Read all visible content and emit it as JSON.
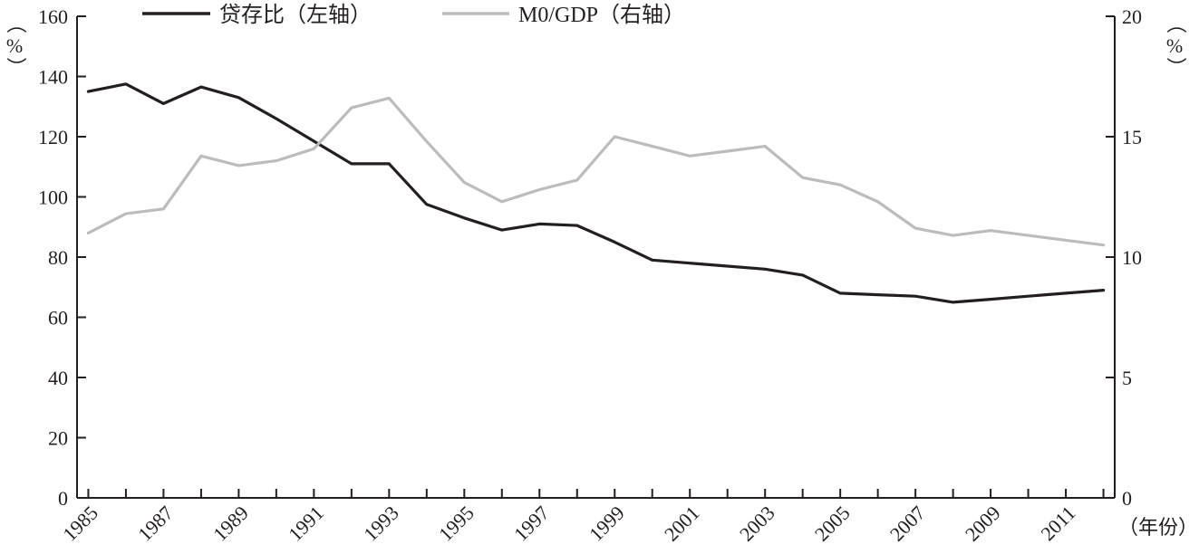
{
  "chart_data": {
    "type": "line",
    "title": "",
    "xlabel": "（年份）",
    "ylabel_left": "（%）",
    "ylabel_right": "（%）",
    "x": [
      1985,
      1986,
      1987,
      1988,
      1989,
      1990,
      1991,
      1992,
      1993,
      1994,
      1995,
      1996,
      1997,
      1998,
      1999,
      2000,
      2001,
      2002,
      2003,
      2004,
      2005,
      2006,
      2007,
      2008,
      2009,
      2010,
      2011,
      2012
    ],
    "x_tick_labels": [
      "1985",
      "1987",
      "1989",
      "1991",
      "1993",
      "1995",
      "1997",
      "1999",
      "2001",
      "2003",
      "2005",
      "2007",
      "2009",
      "2011"
    ],
    "xlim": [
      1984.7,
      2012.3
    ],
    "ylim_left": [
      0,
      160
    ],
    "ylim_right": [
      0,
      20
    ],
    "y_ticks_left": [
      "0",
      "20",
      "40",
      "60",
      "80",
      "100",
      "120",
      "140",
      "160"
    ],
    "y_ticks_right": [
      "0",
      "5",
      "10",
      "15",
      "20"
    ],
    "grid": false,
    "legend_position": "top-center",
    "series": [
      {
        "name": "贷存比（左轴）",
        "axis": "left",
        "color": "#231f20",
        "values": [
          135,
          137.5,
          131,
          136.5,
          133,
          126,
          118.5,
          111,
          111,
          97.5,
          93,
          89,
          91,
          90.5,
          85,
          79,
          78,
          77,
          76,
          74,
          68,
          67.5,
          67,
          65,
          66,
          67,
          68,
          69
        ]
      },
      {
        "name": "M0/GDP（右轴）",
        "axis": "right",
        "color": "#bcbcbc",
        "values": [
          11,
          11.8,
          12,
          14.2,
          13.8,
          14.0,
          14.5,
          16.2,
          16.6,
          14.8,
          13.1,
          12.3,
          12.8,
          13.2,
          15.0,
          14.6,
          14.2,
          14.4,
          14.6,
          13.3,
          13.0,
          12.3,
          11.2,
          10.9,
          11.1,
          10.9,
          10.7,
          10.5
        ]
      }
    ]
  }
}
